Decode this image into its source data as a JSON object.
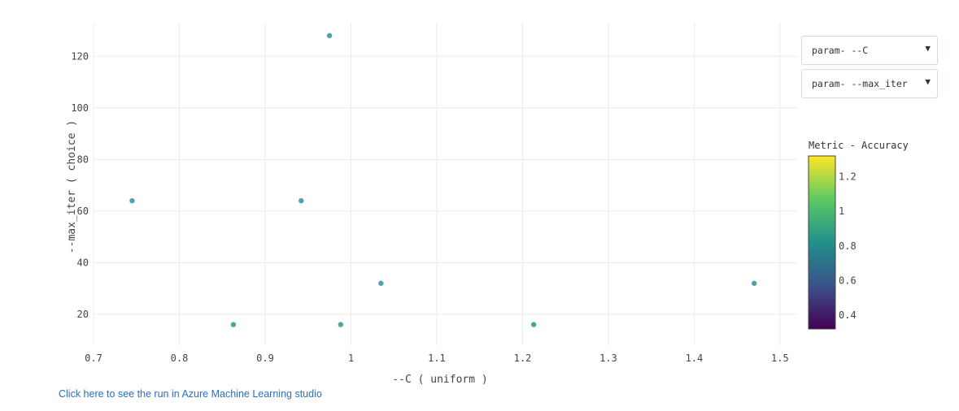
{
  "chart_data": {
    "type": "scatter",
    "xlabel": "--C ( uniform )",
    "ylabel": "--max_iter ( choice )",
    "xlim": [
      0.7,
      1.52
    ],
    "ylim": [
      8,
      133
    ],
    "x_ticks": [
      "0.7",
      "0.8",
      "0.9",
      "1",
      "1.1",
      "1.2",
      "1.3",
      "1.4",
      "1.5"
    ],
    "y_ticks": [
      "20",
      "40",
      "60",
      "80",
      "100",
      "120"
    ],
    "x_tick_values": [
      0.7,
      0.8,
      0.9,
      1.0,
      1.1,
      1.2,
      1.3,
      1.4,
      1.5
    ],
    "y_tick_values": [
      20,
      40,
      60,
      80,
      100,
      120
    ],
    "grid": true,
    "marker_color": "#4fa3a5",
    "points": [
      {
        "x": 0.745,
        "y": 64
      },
      {
        "x": 0.863,
        "y": 16
      },
      {
        "x": 0.942,
        "y": 64
      },
      {
        "x": 0.975,
        "y": 128
      },
      {
        "x": 0.988,
        "y": 16
      },
      {
        "x": 1.035,
        "y": 32
      },
      {
        "x": 1.213,
        "y": 16
      },
      {
        "x": 1.47,
        "y": 32
      }
    ],
    "colorbar": {
      "title": "Metric - Accuracy",
      "range": [
        0.32,
        1.32
      ],
      "ticks": [
        "0.4",
        "0.6",
        "0.8",
        "1",
        "1.2"
      ],
      "tick_values": [
        0.4,
        0.6,
        0.8,
        1.0,
        1.2
      ],
      "colorscale": [
        "#440154",
        "#3b528b",
        "#21908d",
        "#5dc963",
        "#fde725"
      ]
    }
  },
  "controls": {
    "x_param": "param- --C",
    "y_param": "param- --max_iter"
  },
  "link": {
    "text": "Click here to see the run in Azure Machine Learning studio"
  }
}
